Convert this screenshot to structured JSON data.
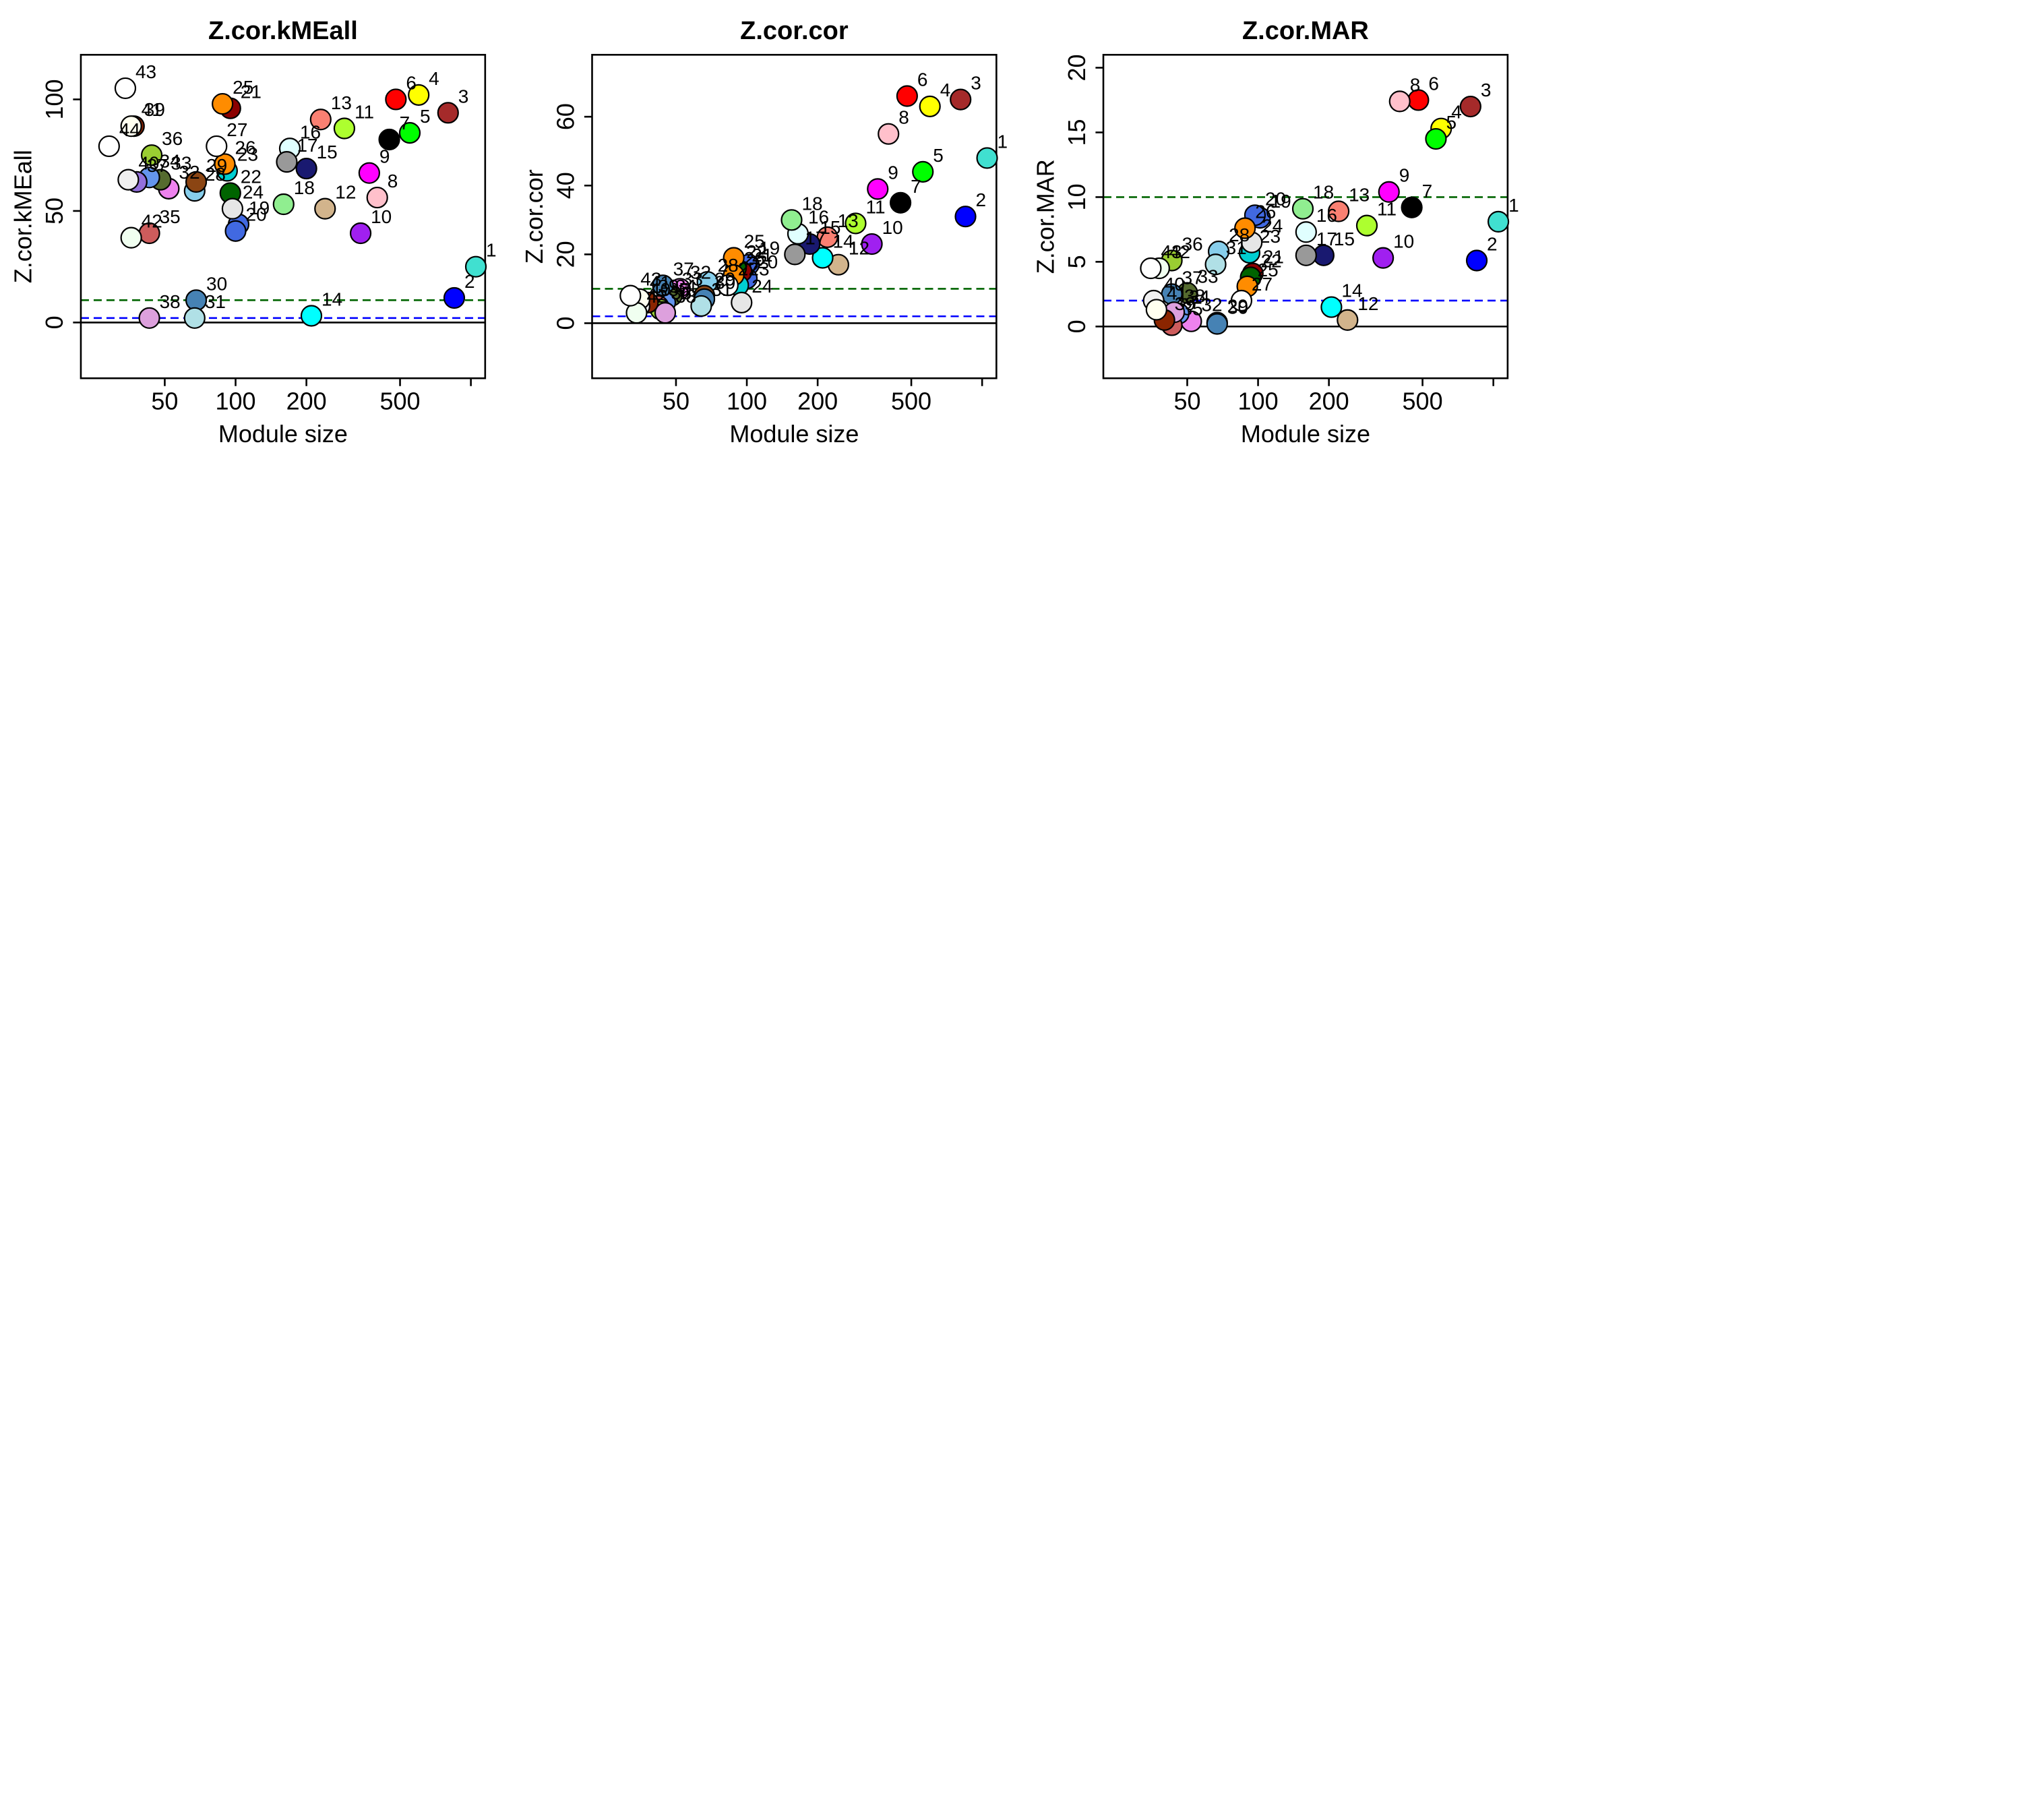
{
  "figure": {
    "panels": [
      {
        "id": "kme",
        "title": "Z.cor.kMEall",
        "ylabel": "Z.cor.kMEall",
        "xlabel": "Module size",
        "yticks": [
          0,
          50,
          100
        ]
      },
      {
        "id": "cor",
        "title": "Z.cor.cor",
        "ylabel": "Z.cor.cor",
        "xlabel": "Module size",
        "yticks": [
          0,
          20,
          40,
          60
        ]
      },
      {
        "id": "mar",
        "title": "Z.cor.MAR",
        "ylabel": "Z.cor.MAR",
        "xlabel": "Module size",
        "yticks": [
          0,
          5,
          10,
          15,
          20
        ]
      }
    ],
    "xticks": [
      50,
      100,
      200,
      500
    ]
  },
  "chart_data": [
    {
      "type": "scatter",
      "title": "Z.cor.kMEall",
      "xlabel": "Module size",
      "ylabel": "Z.cor.kMEall",
      "x_scale": "log",
      "xlim": [
        22,
        1150
      ],
      "ylim": [
        -25,
        120
      ],
      "grid": false,
      "hlines": [
        {
          "y": 0,
          "color": "#000000",
          "style": "solid"
        },
        {
          "y": 2,
          "color": "#0000ff",
          "style": "dashed"
        },
        {
          "y": 10,
          "color": "#006400",
          "style": "dashed"
        }
      ],
      "points": [
        {
          "label": "1",
          "x": 1050,
          "y": 25,
          "color": "#40e0d0"
        },
        {
          "label": "2",
          "x": 850,
          "y": 11,
          "color": "#0000ff"
        },
        {
          "label": "3",
          "x": 800,
          "y": 94,
          "color": "#a52a2a"
        },
        {
          "label": "4",
          "x": 600,
          "y": 102,
          "color": "#ffff00"
        },
        {
          "label": "5",
          "x": 550,
          "y": 85,
          "color": "#00ff00"
        },
        {
          "label": "6",
          "x": 480,
          "y": 100,
          "color": "#ff0000"
        },
        {
          "label": "7",
          "x": 450,
          "y": 82,
          "color": "#000000"
        },
        {
          "label": "8",
          "x": 400,
          "y": 56,
          "color": "#ffc0cb"
        },
        {
          "label": "9",
          "x": 370,
          "y": 67,
          "color": "#ff00ff"
        },
        {
          "label": "10",
          "x": 340,
          "y": 40,
          "color": "#a020f0"
        },
        {
          "label": "11",
          "x": 290,
          "y": 87,
          "color": "#adff2f"
        },
        {
          "label": "12",
          "x": 240,
          "y": 51,
          "color": "#d2b48c"
        },
        {
          "label": "13",
          "x": 230,
          "y": 91,
          "color": "#fa8072"
        },
        {
          "label": "14",
          "x": 210,
          "y": 3,
          "color": "#00ffff"
        },
        {
          "label": "15",
          "x": 200,
          "y": 69,
          "color": "#191970"
        },
        {
          "label": "16",
          "x": 170,
          "y": 78,
          "color": "#e0ffff"
        },
        {
          "label": "17",
          "x": 165,
          "y": 72,
          "color": "#999999"
        },
        {
          "label": "18",
          "x": 160,
          "y": 53,
          "color": "#90ee90"
        },
        {
          "label": "19",
          "x": 103,
          "y": 44,
          "color": "#4169e1"
        },
        {
          "label": "20",
          "x": 100,
          "y": 41,
          "color": "#4169e1"
        },
        {
          "label": "21",
          "x": 95,
          "y": 96,
          "color": "#8b0000"
        },
        {
          "label": "22",
          "x": 95,
          "y": 58,
          "color": "#006400"
        },
        {
          "label": "23",
          "x": 92,
          "y": 68,
          "color": "#00ced1"
        },
        {
          "label": "24",
          "x": 97,
          "y": 51,
          "color": "#e6e6e6"
        },
        {
          "label": "25",
          "x": 88,
          "y": 98,
          "color": "#ff8c00"
        },
        {
          "label": "26",
          "x": 90,
          "y": 71,
          "color": "#ff8c00"
        },
        {
          "label": "27",
          "x": 83,
          "y": 79,
          "color": "#ffffff"
        },
        {
          "label": "28",
          "x": 67,
          "y": 59,
          "color": "#87ceeb"
        },
        {
          "label": "29",
          "x": 68,
          "y": 63,
          "color": "#8b4513"
        },
        {
          "label": "30",
          "x": 68,
          "y": 10,
          "color": "#4682b4"
        },
        {
          "label": "31",
          "x": 67,
          "y": 2,
          "color": "#b0e0e6"
        },
        {
          "label": "32",
          "x": 52,
          "y": 60,
          "color": "#ee82ee"
        },
        {
          "label": "33",
          "x": 48,
          "y": 64,
          "color": "#556b2f"
        },
        {
          "label": "34",
          "x": 43,
          "y": 65,
          "color": "#6495ed"
        },
        {
          "label": "35",
          "x": 43,
          "y": 40,
          "color": "#cd5c5c"
        },
        {
          "label": "36",
          "x": 44,
          "y": 75,
          "color": "#9acd32"
        },
        {
          "label": "37",
          "x": 38,
          "y": 63,
          "color": "#9370db"
        },
        {
          "label": "38",
          "x": 43,
          "y": 2,
          "color": "#dda0dd"
        },
        {
          "label": "39",
          "x": 37,
          "y": 88,
          "color": "#8b2500"
        },
        {
          "label": "40",
          "x": 35,
          "y": 64,
          "color": "#f0f0f0"
        },
        {
          "label": "41",
          "x": 36,
          "y": 88,
          "color": "#fffff0"
        },
        {
          "label": "42",
          "x": 36,
          "y": 38,
          "color": "#f0fff0"
        },
        {
          "label": "43",
          "x": 34,
          "y": 105,
          "color": "#ffffff"
        },
        {
          "label": "44",
          "x": 29,
          "y": 79,
          "color": "#ffffff"
        }
      ]
    },
    {
      "type": "scatter",
      "title": "Z.cor.cor",
      "xlabel": "Module size",
      "ylabel": "Z.cor.cor",
      "x_scale": "log",
      "xlim": [
        22,
        1150
      ],
      "ylim": [
        -16,
        78
      ],
      "grid": false,
      "hlines": [
        {
          "y": 0,
          "color": "#000000",
          "style": "solid"
        },
        {
          "y": 2,
          "color": "#0000ff",
          "style": "dashed"
        },
        {
          "y": 10,
          "color": "#006400",
          "style": "dashed"
        }
      ],
      "points": [
        {
          "label": "1",
          "x": 1050,
          "y": 48,
          "color": "#40e0d0"
        },
        {
          "label": "2",
          "x": 850,
          "y": 31,
          "color": "#0000ff"
        },
        {
          "label": "3",
          "x": 810,
          "y": 65,
          "color": "#a52a2a"
        },
        {
          "label": "4",
          "x": 600,
          "y": 63,
          "color": "#ffff00"
        },
        {
          "label": "5",
          "x": 560,
          "y": 44,
          "color": "#00ff00"
        },
        {
          "label": "6",
          "x": 480,
          "y": 66,
          "color": "#ff0000"
        },
        {
          "label": "7",
          "x": 450,
          "y": 35,
          "color": "#000000"
        },
        {
          "label": "8",
          "x": 400,
          "y": 55,
          "color": "#ffc0cb"
        },
        {
          "label": "9",
          "x": 360,
          "y": 39,
          "color": "#ff00ff"
        },
        {
          "label": "10",
          "x": 340,
          "y": 23,
          "color": "#a020f0"
        },
        {
          "label": "11",
          "x": 290,
          "y": 29,
          "color": "#adff2f"
        },
        {
          "label": "12",
          "x": 245,
          "y": 17,
          "color": "#d2b48c"
        },
        {
          "label": "13",
          "x": 220,
          "y": 25,
          "color": "#fa8072"
        },
        {
          "label": "14",
          "x": 210,
          "y": 19,
          "color": "#00ffff"
        },
        {
          "label": "15",
          "x": 185,
          "y": 23,
          "color": "#191970"
        },
        {
          "label": "16",
          "x": 165,
          "y": 26,
          "color": "#e0ffff"
        },
        {
          "label": "17",
          "x": 160,
          "y": 20,
          "color": "#999999"
        },
        {
          "label": "18",
          "x": 155,
          "y": 30,
          "color": "#90ee90"
        },
        {
          "label": "19",
          "x": 102,
          "y": 17,
          "color": "#4169e1"
        },
        {
          "label": "20",
          "x": 100,
          "y": 13,
          "color": "#4169e1"
        },
        {
          "label": "21",
          "x": 95,
          "y": 15,
          "color": "#8b0000"
        },
        {
          "label": "22",
          "x": 90,
          "y": 16,
          "color": "#006400"
        },
        {
          "label": "23",
          "x": 92,
          "y": 11,
          "color": "#00ced1"
        },
        {
          "label": "24",
          "x": 95,
          "y": 6,
          "color": "#e6e6e6"
        },
        {
          "label": "25",
          "x": 88,
          "y": 19,
          "color": "#ff8c00"
        },
        {
          "label": "26",
          "x": 88,
          "y": 14,
          "color": "#ff8c00"
        },
        {
          "label": "27",
          "x": 83,
          "y": 11,
          "color": "#ffffff"
        },
        {
          "label": "28",
          "x": 68,
          "y": 12,
          "color": "#87ceeb"
        },
        {
          "label": "29",
          "x": 66,
          "y": 8,
          "color": "#8b4513"
        },
        {
          "label": "30",
          "x": 66,
          "y": 7,
          "color": "#4682b4"
        },
        {
          "label": "31",
          "x": 64,
          "y": 5,
          "color": "#b0e0e6"
        },
        {
          "label": "32",
          "x": 52,
          "y": 10,
          "color": "#ee82ee"
        },
        {
          "label": "33",
          "x": 48,
          "y": 8,
          "color": "#556b2f"
        },
        {
          "label": "34",
          "x": 45,
          "y": 6,
          "color": "#6495ed"
        },
        {
          "label": "35",
          "x": 42,
          "y": 5,
          "color": "#cd5c5c"
        },
        {
          "label": "36",
          "x": 43,
          "y": 4,
          "color": "#9acd32"
        },
        {
          "label": "37",
          "x": 44,
          "y": 11,
          "color": "#4682b4"
        },
        {
          "label": "38",
          "x": 45,
          "y": 3,
          "color": "#dda0dd"
        },
        {
          "label": "39",
          "x": 38,
          "y": 6,
          "color": "#8b2500"
        },
        {
          "label": "40",
          "x": 35,
          "y": 5,
          "color": "#f0f0f0"
        },
        {
          "label": "41",
          "x": 35,
          "y": 7,
          "color": "#fffff0"
        },
        {
          "label": "42",
          "x": 34,
          "y": 3,
          "color": "#f0fff0"
        },
        {
          "label": "43",
          "x": 32,
          "y": 8,
          "color": "#ffffff"
        }
      ]
    },
    {
      "type": "scatter",
      "title": "Z.cor.MAR",
      "xlabel": "Module size",
      "ylabel": "Z.cor.MAR",
      "x_scale": "log",
      "xlim": [
        22,
        1150
      ],
      "ylim": [
        -4,
        21
      ],
      "grid": false,
      "hlines": [
        {
          "y": 0,
          "color": "#000000",
          "style": "solid"
        },
        {
          "y": 2,
          "color": "#0000ff",
          "style": "dashed"
        },
        {
          "y": 10,
          "color": "#006400",
          "style": "dashed"
        }
      ],
      "points": [
        {
          "label": "1",
          "x": 1050,
          "y": 8.1,
          "color": "#40e0d0"
        },
        {
          "label": "2",
          "x": 850,
          "y": 5.1,
          "color": "#0000ff"
        },
        {
          "label": "3",
          "x": 800,
          "y": 17,
          "color": "#a52a2a"
        },
        {
          "label": "4",
          "x": 600,
          "y": 15.3,
          "color": "#ffff00"
        },
        {
          "label": "5",
          "x": 570,
          "y": 14.5,
          "color": "#00ff00"
        },
        {
          "label": "6",
          "x": 480,
          "y": 17.5,
          "color": "#ff0000"
        },
        {
          "label": "7",
          "x": 450,
          "y": 9.2,
          "color": "#000000"
        },
        {
          "label": "8",
          "x": 400,
          "y": 17.4,
          "color": "#ffc0cb"
        },
        {
          "label": "9",
          "x": 360,
          "y": 10.4,
          "color": "#ff00ff"
        },
        {
          "label": "10",
          "x": 340,
          "y": 5.3,
          "color": "#a020f0"
        },
        {
          "label": "11",
          "x": 290,
          "y": 7.8,
          "color": "#adff2f"
        },
        {
          "label": "12",
          "x": 240,
          "y": 0.5,
          "color": "#d2b48c"
        },
        {
          "label": "13",
          "x": 220,
          "y": 8.9,
          "color": "#fa8072"
        },
        {
          "label": "14",
          "x": 205,
          "y": 1.5,
          "color": "#00ffff"
        },
        {
          "label": "15",
          "x": 190,
          "y": 5.5,
          "color": "#191970"
        },
        {
          "label": "16",
          "x": 160,
          "y": 7.3,
          "color": "#e0ffff"
        },
        {
          "label": "17",
          "x": 160,
          "y": 5.5,
          "color": "#999999"
        },
        {
          "label": "18",
          "x": 155,
          "y": 9.1,
          "color": "#90ee90"
        },
        {
          "label": "19",
          "x": 102,
          "y": 8.4,
          "color": "#4169e1"
        },
        {
          "label": "20",
          "x": 97,
          "y": 8.6,
          "color": "#4169e1"
        },
        {
          "label": "21",
          "x": 95,
          "y": 4.1,
          "color": "#8b0000"
        },
        {
          "label": "22",
          "x": 93,
          "y": 3.8,
          "color": "#006400"
        },
        {
          "label": "23",
          "x": 92,
          "y": 5.7,
          "color": "#00ced1"
        },
        {
          "label": "24",
          "x": 94,
          "y": 6.5,
          "color": "#e6e6e6"
        },
        {
          "label": "25",
          "x": 90,
          "y": 3.1,
          "color": "#ff8c00"
        },
        {
          "label": "26",
          "x": 88,
          "y": 7.6,
          "color": "#ff8c00"
        },
        {
          "label": "27",
          "x": 85,
          "y": 2,
          "color": "#ffffff"
        },
        {
          "label": "28",
          "x": 68,
          "y": 5.8,
          "color": "#87ceeb"
        },
        {
          "label": "29",
          "x": 67,
          "y": 0.3,
          "color": "#8b4513"
        },
        {
          "label": "30",
          "x": 67,
          "y": 0.2,
          "color": "#4682b4"
        },
        {
          "label": "31",
          "x": 66,
          "y": 4.8,
          "color": "#b0e0e6"
        },
        {
          "label": "32",
          "x": 52,
          "y": 0.4,
          "color": "#ee82ee"
        },
        {
          "label": "33",
          "x": 50,
          "y": 2.6,
          "color": "#556b2f"
        },
        {
          "label": "34",
          "x": 46,
          "y": 1,
          "color": "#6495ed"
        },
        {
          "label": "35",
          "x": 43,
          "y": 0.1,
          "color": "#cd5c5c"
        },
        {
          "label": "36",
          "x": 43,
          "y": 5.1,
          "color": "#9acd32"
        },
        {
          "label": "37",
          "x": 43,
          "y": 2.5,
          "color": "#4682b4"
        },
        {
          "label": "38",
          "x": 44,
          "y": 1.1,
          "color": "#dda0dd"
        },
        {
          "label": "39",
          "x": 40,
          "y": 0.5,
          "color": "#8b2500"
        },
        {
          "label": "40",
          "x": 36,
          "y": 2,
          "color": "#f0f0f0"
        },
        {
          "label": "41",
          "x": 37,
          "y": 1.3,
          "color": "#fffff0"
        },
        {
          "label": "42",
          "x": 38,
          "y": 4.5,
          "color": "#f0fff0"
        },
        {
          "label": "43",
          "x": 35,
          "y": 4.5,
          "color": "#ffffff"
        }
      ]
    }
  ]
}
